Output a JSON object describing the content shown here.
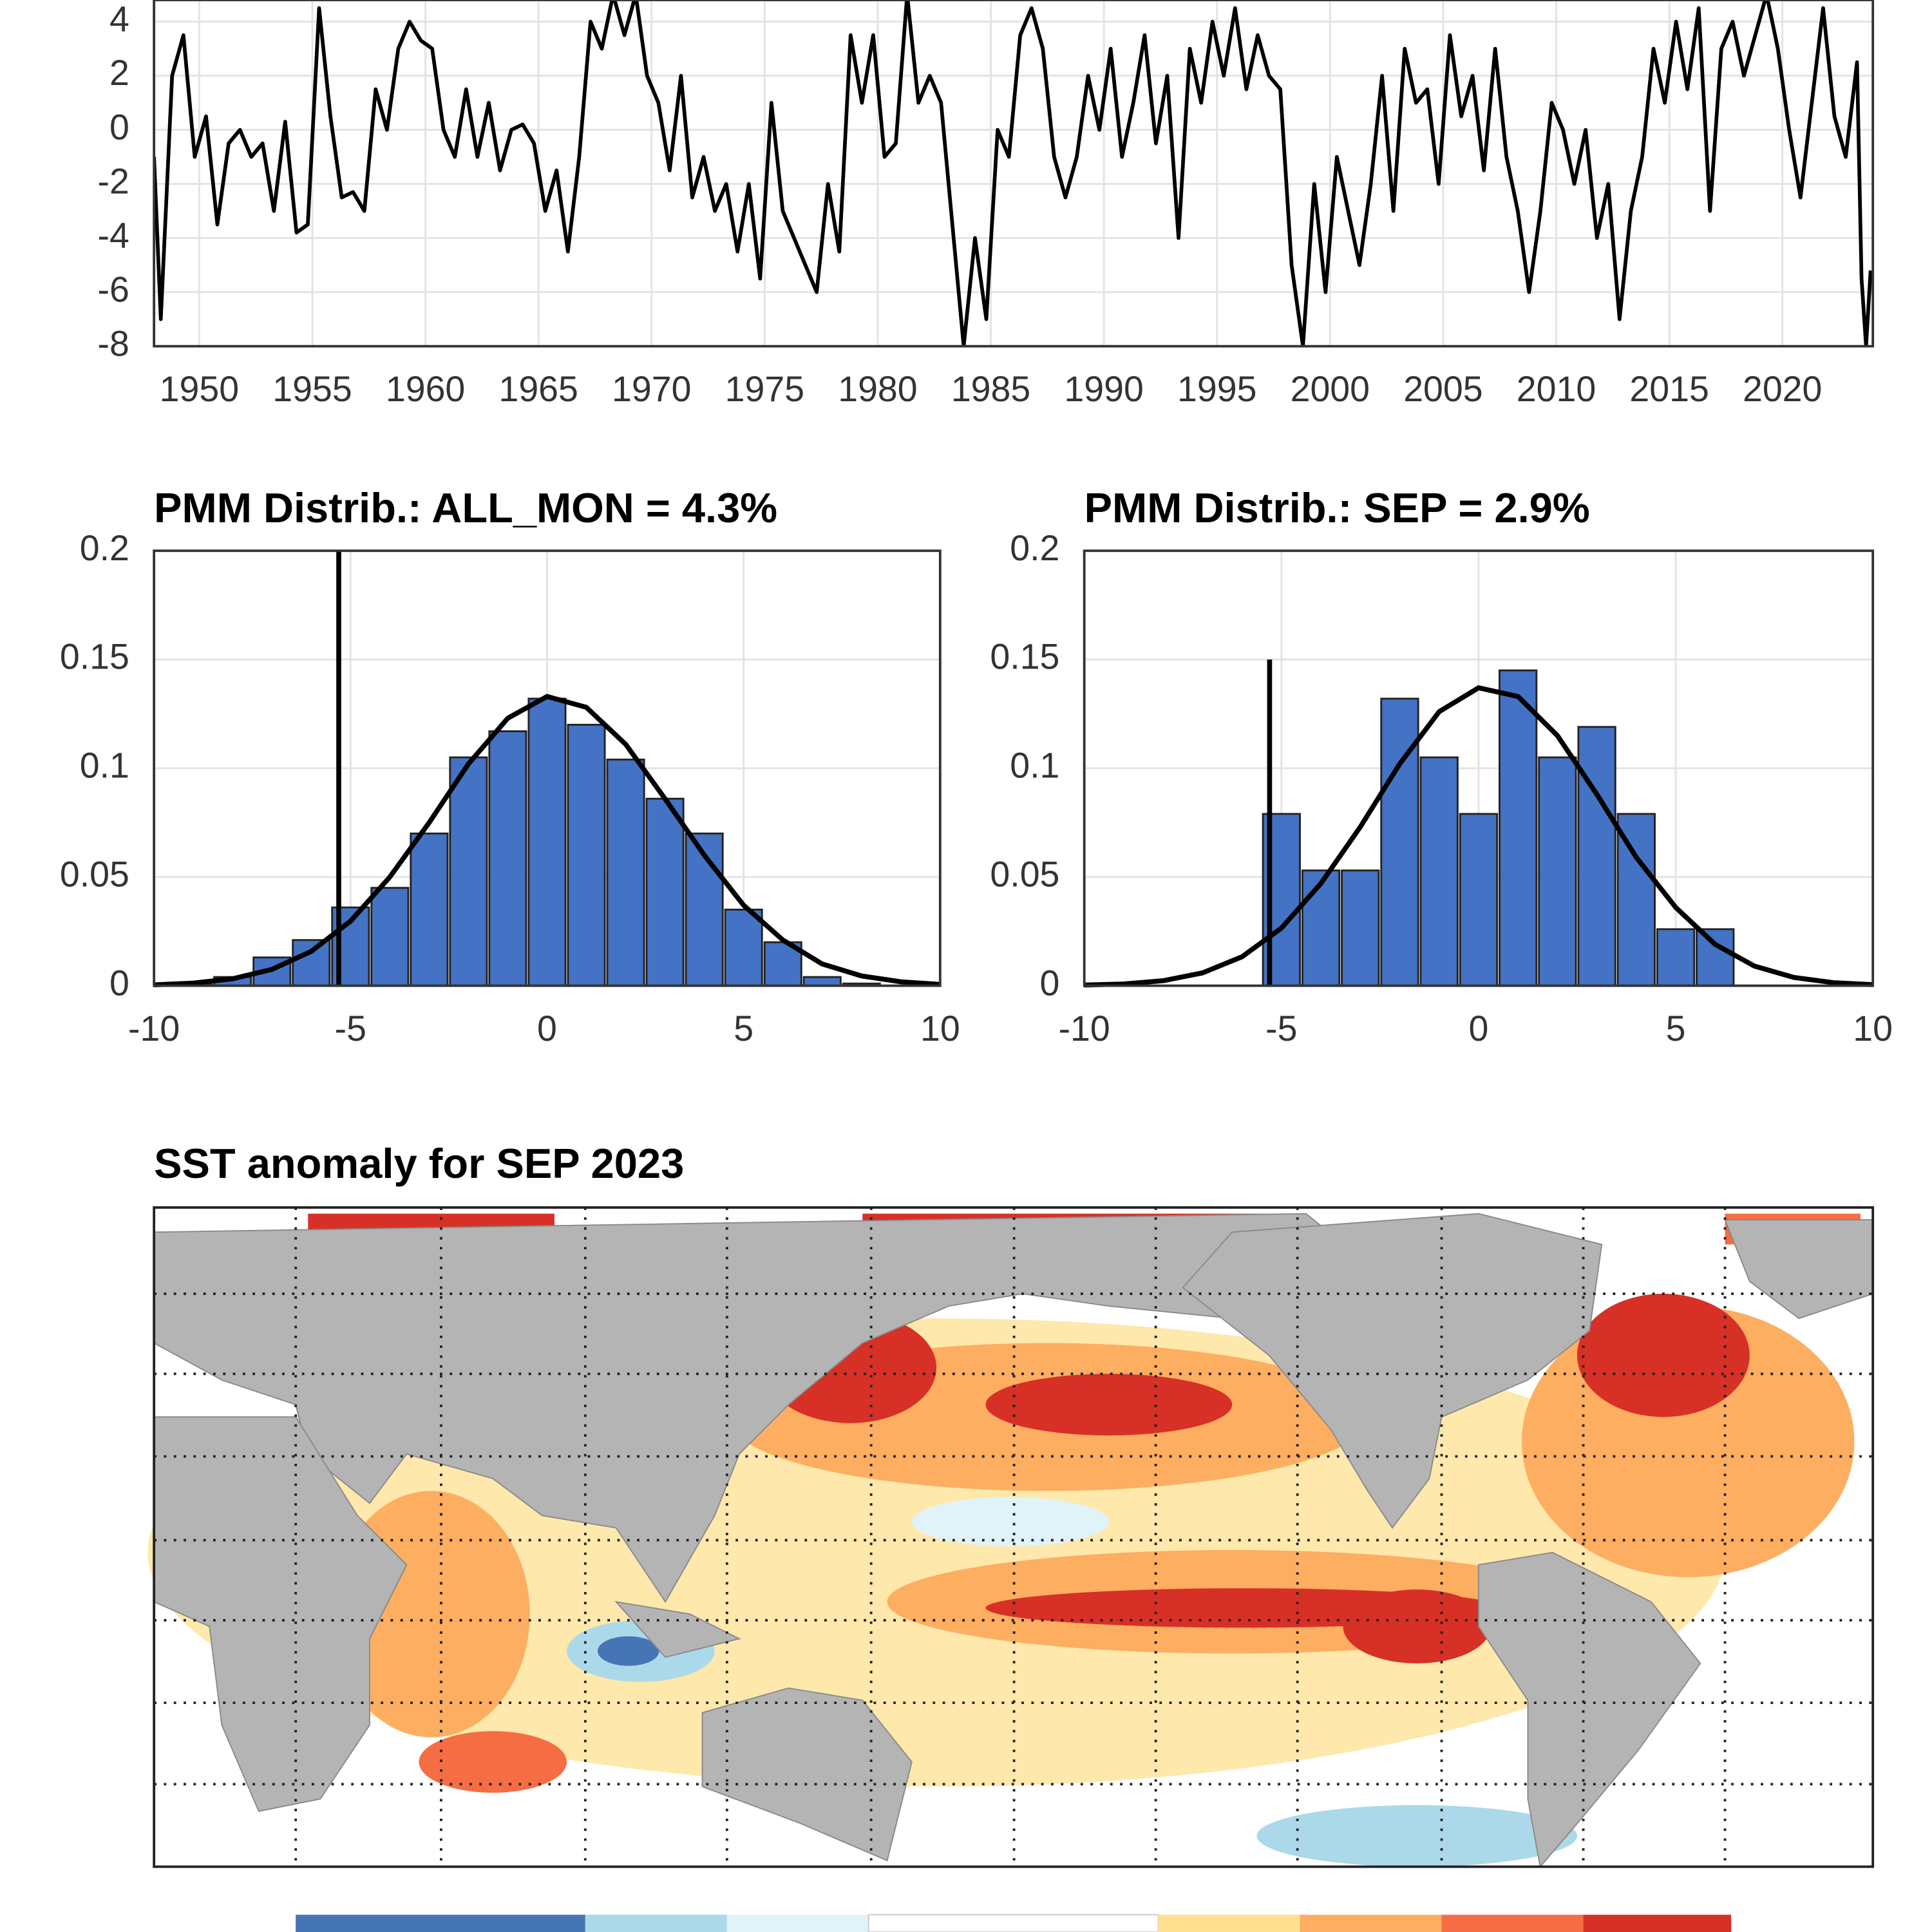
{
  "chart_data": [
    {
      "type": "line",
      "color": "#000000",
      "x": [
        1948.0,
        1948.3,
        1948.8,
        1949.3,
        1949.8,
        1950.3,
        1950.8,
        1951.3,
        1951.8,
        1952.3,
        1952.8,
        1953.3,
        1953.8,
        1954.3,
        1954.8,
        1955.3,
        1955.8,
        1956.3,
        1956.8,
        1957.3,
        1957.8,
        1958.3,
        1958.8,
        1959.3,
        1959.8,
        1960.3,
        1960.8,
        1961.3,
        1961.8,
        1962.3,
        1962.8,
        1963.3,
        1963.8,
        1964.3,
        1964.8,
        1965.3,
        1965.8,
        1966.3,
        1966.8,
        1967.3,
        1967.8,
        1968.3,
        1968.8,
        1969.3,
        1969.8,
        1970.3,
        1970.8,
        1971.3,
        1971.8,
        1972.3,
        1972.8,
        1973.3,
        1973.8,
        1974.3,
        1974.8,
        1975.3,
        1975.8,
        1976.3,
        1976.8,
        1977.3,
        1977.8,
        1978.3,
        1978.8,
        1979.3,
        1979.8,
        1980.3,
        1980.8,
        1981.3,
        1981.8,
        1982.3,
        1982.8,
        1983.3,
        1983.8,
        1984.3,
        1984.8,
        1985.3,
        1985.8,
        1986.3,
        1986.8,
        1987.3,
        1987.8,
        1988.3,
        1988.8,
        1989.3,
        1989.8,
        1990.3,
        1990.8,
        1991.3,
        1991.8,
        1992.3,
        1992.8,
        1993.3,
        1993.8,
        1994.3,
        1994.8,
        1995.3,
        1995.8,
        1996.3,
        1996.8,
        1997.3,
        1997.8,
        1998.3,
        1998.8,
        1999.3,
        1999.8,
        2000.3,
        2000.8,
        2001.3,
        2001.8,
        2002.3,
        2002.8,
        2003.3,
        2003.8,
        2004.3,
        2004.8,
        2005.3,
        2005.8,
        2006.3,
        2006.8,
        2007.3,
        2007.8,
        2008.3,
        2008.8,
        2009.3,
        2009.8,
        2010.3,
        2010.8,
        2011.3,
        2011.8,
        2012.3,
        2012.8,
        2013.3,
        2013.8,
        2014.3,
        2014.8,
        2015.3,
        2015.8,
        2016.3,
        2016.8,
        2017.3,
        2017.8,
        2018.3,
        2018.8,
        2019.3,
        2019.8,
        2020.3,
        2020.8,
        2021.3,
        2021.8,
        2022.3,
        2022.8,
        2023.3,
        2023.5,
        2023.7,
        2023.9
      ],
      "values": [
        -1,
        -7,
        2,
        3.5,
        -1,
        0.5,
        -3.5,
        -0.5,
        0,
        -1,
        -0.5,
        -3,
        0.3,
        -3.8,
        -3.5,
        4.5,
        0.5,
        -2.5,
        -2.3,
        -3,
        1.5,
        0,
        3,
        4,
        3.3,
        3,
        0,
        -1,
        1.5,
        -1,
        1,
        -1.5,
        0,
        0.2,
        -0.5,
        -3,
        -1.5,
        -4.5,
        -1,
        4,
        3,
        5,
        3.5,
        5,
        2,
        1,
        -1.5,
        2,
        -2.5,
        -1,
        -3,
        -2,
        -4.5,
        -2,
        -5.5,
        1,
        -3,
        -4,
        -5,
        -6,
        -2,
        -4.5,
        3.5,
        1,
        3.5,
        -1,
        -0.5,
        5,
        1,
        2,
        1,
        -3.5,
        -8,
        -4,
        -7,
        0,
        -1,
        3.5,
        4.5,
        3,
        -1,
        -2.5,
        -1,
        2,
        0,
        3,
        -1,
        1,
        3.5,
        -0.5,
        2,
        -4,
        3,
        1,
        4,
        2,
        4.5,
        1.5,
        3.5,
        2,
        1.5,
        -5,
        -8,
        -2,
        -6,
        -1,
        -3,
        -5,
        -2,
        2,
        -3,
        3,
        1,
        1.5,
        -2,
        3.5,
        0.5,
        2,
        -1.5,
        3,
        -1,
        -3,
        -6,
        -3,
        1,
        0,
        -2,
        0,
        -4,
        -2,
        -7,
        -3,
        -1,
        3,
        1,
        4,
        1.5,
        4.5,
        -3,
        3,
        4,
        2,
        3.5,
        5,
        3,
        0,
        -2.5,
        1,
        4.5,
        0.5,
        -1,
        2.5,
        -5.5,
        -8,
        -5.2
      ],
      "xlim": [
        1948,
        2024
      ],
      "ylim": [
        -8,
        4.8
      ],
      "xticks": [
        1950,
        1955,
        1960,
        1965,
        1970,
        1975,
        1980,
        1985,
        1990,
        1995,
        2000,
        2005,
        2010,
        2015,
        2020
      ],
      "yticks": [
        -8,
        -6,
        -4,
        -2,
        0,
        2,
        4
      ],
      "grid": true
    },
    {
      "type": "histogram",
      "title": "PMM Distrib.: ALL_MON = 4.3%",
      "color": "#4472c4",
      "bins": [
        -9.5,
        -8.5,
        -7.5,
        -6.5,
        -5.5,
        -4.5,
        -3.5,
        -2.5,
        -1.5,
        -0.5,
        0.5,
        1.5,
        2.5,
        3.5,
        4.5,
        5.5,
        6.5,
        7.5,
        8.5
      ],
      "values": [
        0.001,
        0.004,
        0.013,
        0.021,
        0.036,
        0.045,
        0.07,
        0.105,
        0.117,
        0.132,
        0.12,
        0.104,
        0.086,
        0.07,
        0.035,
        0.02,
        0.004,
        0.001
      ],
      "fit": {
        "x": [
          -10,
          -9,
          -8,
          -7,
          -6,
          -5,
          -4,
          -3,
          -2,
          -1,
          0,
          1,
          2,
          3,
          4,
          5,
          6,
          7,
          8,
          9,
          10
        ],
        "values": [
          0.0004,
          0.0012,
          0.0032,
          0.0075,
          0.0158,
          0.0297,
          0.05,
          0.075,
          0.102,
          0.123,
          0.133,
          0.128,
          0.111,
          0.086,
          0.06,
          0.037,
          0.021,
          0.01,
          0.0045,
          0.0018,
          0.0006
        ]
      },
      "reference_line": {
        "x": -5.3,
        "y": 0.2
      },
      "xlim": [
        -10,
        10
      ],
      "ylim": [
        0,
        0.2
      ],
      "xticks": [
        -10,
        -5,
        0,
        5,
        10
      ],
      "yticks": [
        0,
        0.05,
        0.1,
        0.15,
        0.2
      ],
      "grid": true
    },
    {
      "type": "histogram",
      "title": "PMM Distrib.: SEP = 2.9%",
      "color": "#4472c4",
      "bins": [
        -5.5,
        -4.5,
        -3.5,
        -2.5,
        -1.5,
        -0.5,
        0.5,
        1.5,
        2.5,
        3.5,
        4.5,
        5.5,
        6.5
      ],
      "values": [
        0.079,
        0.053,
        0.053,
        0.132,
        0.105,
        0.079,
        0.145,
        0.105,
        0.119,
        0.079,
        0.026,
        0.026
      ],
      "fit": {
        "x": [
          -10,
          -9,
          -8,
          -7,
          -6,
          -5,
          -4,
          -3,
          -2,
          -1,
          0,
          1,
          2,
          3,
          4,
          5,
          6,
          7,
          8,
          9,
          10
        ],
        "values": [
          0.0003,
          0.0008,
          0.0023,
          0.0059,
          0.0133,
          0.0265,
          0.047,
          0.073,
          0.102,
          0.126,
          0.137,
          0.133,
          0.115,
          0.088,
          0.059,
          0.036,
          0.019,
          0.009,
          0.0038,
          0.0014,
          0.0005
        ]
      },
      "reference_line": {
        "x": -5.3,
        "y": 0.15
      },
      "xlim": [
        -10,
        10
      ],
      "ylim": [
        0,
        0.2
      ],
      "xticks": [
        -10,
        -5,
        0,
        5,
        10
      ],
      "yticks": [
        0,
        0.05,
        0.1,
        0.15,
        0.2
      ],
      "grid": true
    }
  ],
  "map": {
    "title": "SST anomaly for SEP 2023"
  }
}
